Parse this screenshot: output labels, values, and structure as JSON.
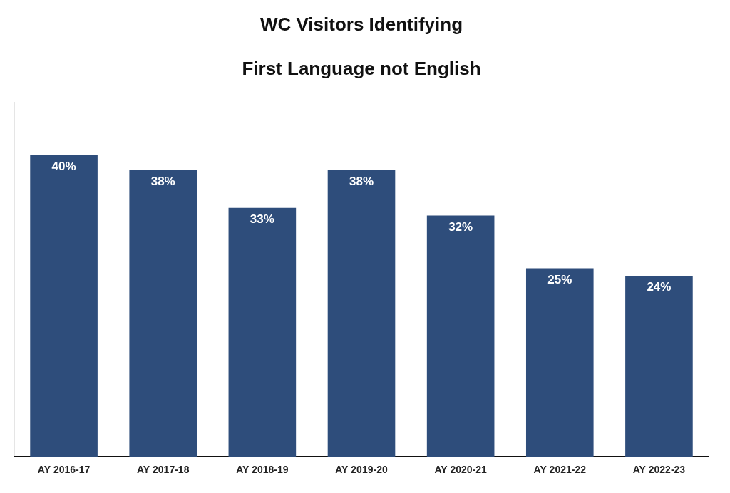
{
  "chart_data": {
    "type": "bar",
    "title": "WC Visitors Identifying\n\nFirst Language not English",
    "categories": [
      "AY 2016-17",
      "AY 2017-18",
      "AY 2018-19",
      "AY 2019-20",
      "AY 2020-21",
      "AY 2021-22",
      "AY 2022-23"
    ],
    "values": [
      40,
      38,
      33,
      38,
      32,
      25,
      24
    ],
    "value_labels": [
      "40%",
      "38%",
      "33%",
      "38%",
      "32%",
      "25%",
      "24%"
    ],
    "data_labels": true,
    "color": "#2E4D7B",
    "ylim": [
      0,
      47
    ],
    "grid": false,
    "tick_labels": "x"
  }
}
